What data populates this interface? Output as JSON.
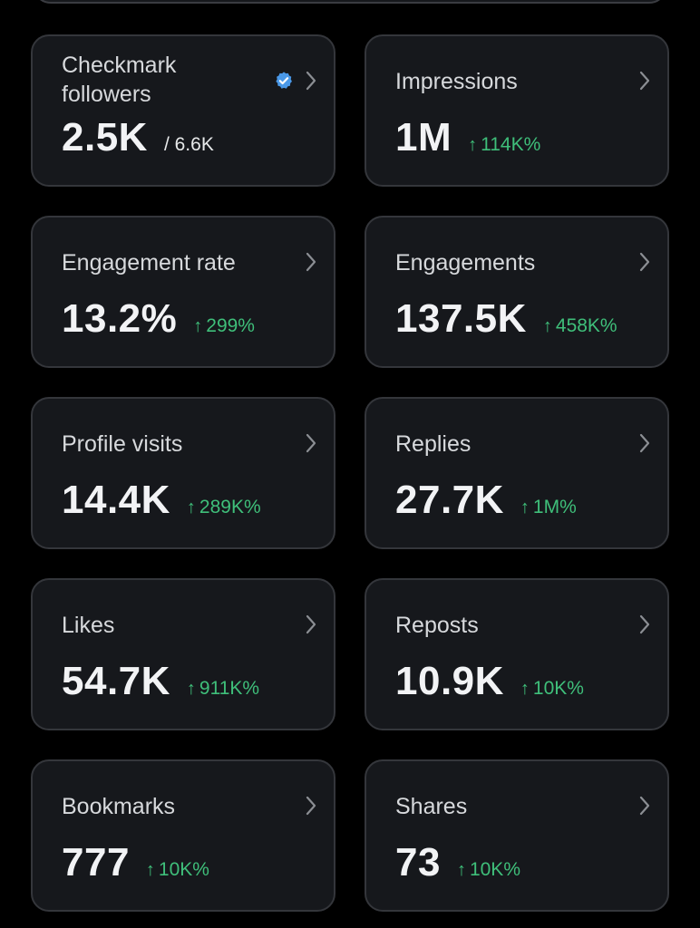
{
  "colors": {
    "background": "#000000",
    "card_background": "#16181c",
    "card_border": "#34363b",
    "value_text": "#f2f3f5",
    "label_text": "#d7d9dc",
    "positive_delta": "#3fbf7a",
    "verified_badge": "#4a99e9"
  },
  "cards": {
    "checkmark_followers": {
      "label": "Checkmark followers",
      "value": "2.5K",
      "total": "/ 6.6K",
      "icon": "verified-badge-icon"
    },
    "impressions": {
      "label": "Impressions",
      "value": "1M",
      "delta": "114K%"
    },
    "engagement_rate": {
      "label": "Engagement rate",
      "value": "13.2%",
      "delta": "299%"
    },
    "engagements": {
      "label": "Engagements",
      "value": "137.5K",
      "delta": "458K%"
    },
    "profile_visits": {
      "label": "Profile visits",
      "value": "14.4K",
      "delta": "289K%"
    },
    "replies": {
      "label": "Replies",
      "value": "27.7K",
      "delta": "1M%"
    },
    "likes": {
      "label": "Likes",
      "value": "54.7K",
      "delta": "911K%"
    },
    "reposts": {
      "label": "Reposts",
      "value": "10.9K",
      "delta": "10K%"
    },
    "bookmarks": {
      "label": "Bookmarks",
      "value": "777",
      "delta": "10K%"
    },
    "shares": {
      "label": "Shares",
      "value": "73",
      "delta": "10K%"
    }
  },
  "delta_arrow": "↑"
}
